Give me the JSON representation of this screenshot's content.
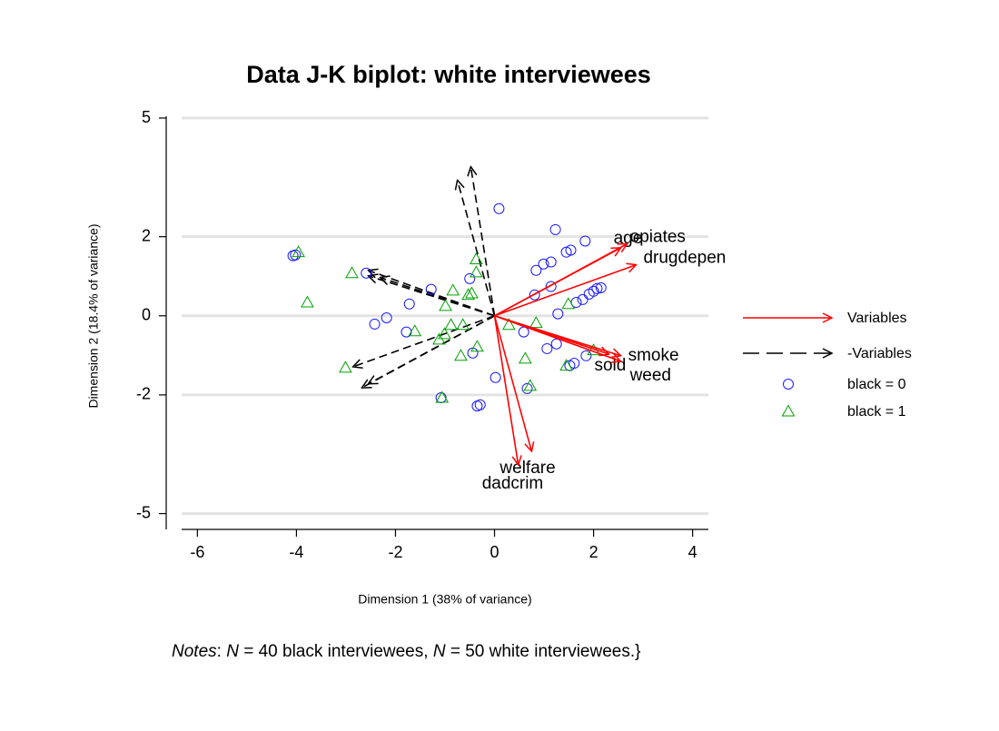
{
  "chart_data": {
    "type": "biplot",
    "title": "Data J-K biplot: white interviewees",
    "x_label": "Dimension 1 (38% of variance)",
    "y_label": "Dimension 2 (18.4% of variance)",
    "note": [
      {
        "text": "Notes",
        "italic": true
      },
      {
        "text": ": ",
        "italic": false
      },
      {
        "text": "N",
        "italic": true
      },
      {
        "text": " = 40 black interviewees, ",
        "italic": false
      },
      {
        "text": "N",
        "italic": true
      },
      {
        "text": " = 50 white interviewees.}",
        "italic": false
      }
    ],
    "xlim": [
      -6.3,
      4.3
    ],
    "ylim": [
      -5.4,
      5
    ],
    "xticks": [
      -6,
      -4,
      -2,
      0,
      2,
      4
    ],
    "yticks": [
      5,
      2,
      0,
      -2,
      -5
    ],
    "grid": true,
    "variables": {
      "name": "Variables",
      "color": "#ff0000",
      "negative_name": "-Variables",
      "negative_color": "#000000",
      "vectors": [
        {
          "label": "age",
          "x": 2.55,
          "y": 1.72
        },
        {
          "label": "opiates",
          "x": 2.68,
          "y": 1.82
        },
        {
          "label": "drugdepen",
          "x": 2.86,
          "y": 1.29
        },
        {
          "label": "smoke",
          "x": 2.55,
          "y": -1.01
        },
        {
          "label": "sold",
          "x": 2.31,
          "y": -0.97
        },
        {
          "label": "weed",
          "x": 2.55,
          "y": -1.15
        },
        {
          "label": "welfare",
          "x": 0.75,
          "y": -3.43
        },
        {
          "label": "dadcrim",
          "x": 0.48,
          "y": -3.77
        }
      ]
    },
    "series": [
      {
        "name": "black = 0",
        "marker": "circle",
        "color": "#1a1aff",
        "x": [
          0.09,
          1.23,
          1.83,
          1.54,
          1.45,
          1.14,
          0.99,
          0.84,
          -4.07,
          -4.02,
          -2.59,
          -1.28,
          -0.5,
          -1.72,
          1.14,
          0.81,
          1.65,
          1.78,
          1.91,
          2.0,
          2.07,
          2.15,
          1.28,
          -2.18,
          -2.42,
          -1.78,
          0.59,
          1.06,
          1.25,
          1.85,
          1.61,
          1.52,
          -0.44,
          0.02,
          0.66,
          -1.08,
          -0.29,
          -0.35
        ],
        "y": [
          2.71,
          2.18,
          1.89,
          1.66,
          1.61,
          1.36,
          1.31,
          1.15,
          1.52,
          1.54,
          1.08,
          0.67,
          0.94,
          0.3,
          0.74,
          0.53,
          0.34,
          0.41,
          0.55,
          0.62,
          0.69,
          0.71,
          0.05,
          -0.05,
          -0.21,
          -0.41,
          -0.41,
          -0.83,
          -0.71,
          -1.01,
          -1.2,
          -1.26,
          -0.94,
          -1.56,
          -1.84,
          -2.07,
          -2.25,
          -2.28
        ]
      },
      {
        "name": "black = 1",
        "marker": "triangle",
        "color": "#00a000",
        "x": [
          -3.96,
          -2.88,
          -3.78,
          -0.37,
          -0.37,
          -0.84,
          -0.53,
          -0.46,
          -0.99,
          -0.88,
          -0.64,
          0.84,
          -1.61,
          -1.12,
          -1.01,
          -0.35,
          -0.68,
          0.62,
          -3.01,
          2.0,
          1.45,
          0.72,
          -1.06,
          1.49,
          0.29
        ],
        "y": [
          1.61,
          1.08,
          0.34,
          1.43,
          1.1,
          0.64,
          0.53,
          0.57,
          0.25,
          -0.23,
          -0.23,
          -0.18,
          -0.39,
          -0.6,
          -0.46,
          -0.78,
          -1.01,
          -1.08,
          -1.31,
          -0.87,
          -1.26,
          -1.77,
          -2.07,
          0.3,
          -0.23
        ]
      }
    ]
  }
}
